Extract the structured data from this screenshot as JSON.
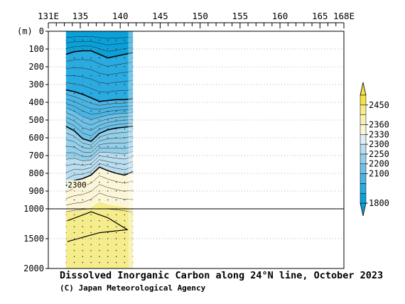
{
  "chart_data": {
    "type": "heatmap",
    "title": "Dissolved Inorganic Carbon along 24°N line, October 2023",
    "credit": "(C) Japan Meteorological Agency",
    "y_unit_label": "(m)",
    "x_ticks": [
      {
        "value": 131,
        "label": "131E"
      },
      {
        "value": 135,
        "label": "135"
      },
      {
        "value": 140,
        "label": "140"
      },
      {
        "value": 145,
        "label": "145"
      },
      {
        "value": 150,
        "label": "150"
      },
      {
        "value": 155,
        "label": "155"
      },
      {
        "value": 160,
        "label": "160"
      },
      {
        "value": 165,
        "label": "165"
      },
      {
        "value": 168,
        "label": "168E"
      }
    ],
    "xlim": [
      131,
      168
    ],
    "y_ticks_upper": [
      "0",
      "100",
      "200",
      "300",
      "400",
      "500",
      "600",
      "700",
      "800",
      "900",
      "1000"
    ],
    "y_ticks_lower": [
      "1000",
      "1500",
      "2000"
    ],
    "ylim": [
      0,
      2000
    ],
    "scale_break_depth": 1000,
    "section_lon_range": [
      133.2,
      141.6
    ],
    "colorbar_levels": [
      "1800",
      "2100",
      "2200",
      "2250",
      "2300",
      "2330",
      "2360",
      "2450"
    ],
    "colors": [
      "#0aa0d8",
      "#29aae0",
      "#4ab5e4",
      "#6ec1e6",
      "#93cfe9",
      "#b9def0",
      "#ddeef6",
      "#fbf6d8",
      "#f7f0b4",
      "#f5ec8c",
      "#f2e244"
    ],
    "contour_labels": [
      {
        "text": "2300",
        "lon": 134.6,
        "depth": 875
      }
    ],
    "depth_contours_upper": [
      {
        "level": "2100",
        "depths": [
          130,
          115,
          110,
          110,
          130,
          150,
          140,
          130,
          120
        ]
      },
      {
        "level": "2200",
        "depths": [
          330,
          340,
          355,
          375,
          395,
          390,
          385,
          385,
          380
        ]
      },
      {
        "level": "2250",
        "depths": [
          535,
          560,
          605,
          620,
          575,
          555,
          545,
          540,
          535
        ]
      },
      {
        "level": "2300",
        "depths": [
          870,
          840,
          830,
          810,
          765,
          785,
          800,
          810,
          790
        ]
      }
    ]
  }
}
